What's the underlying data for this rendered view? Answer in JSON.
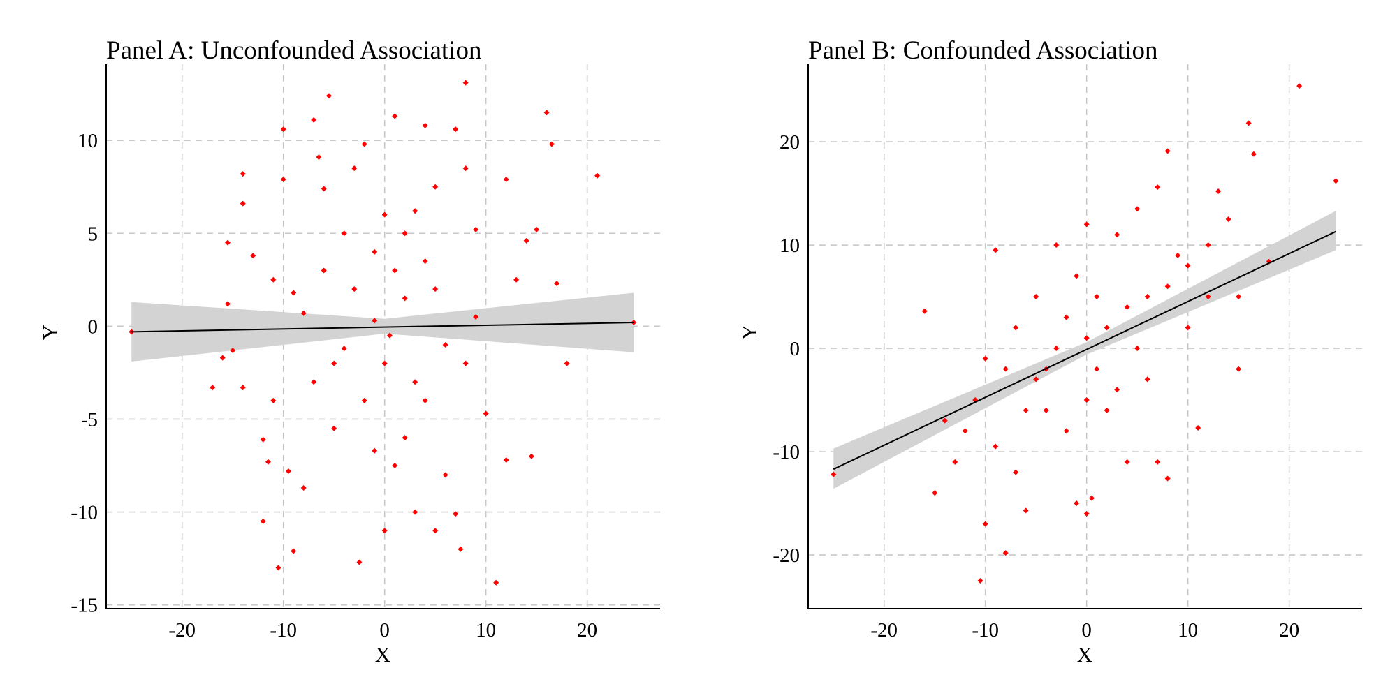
{
  "chart_data": [
    {
      "type": "scatter",
      "title": "Panel A: Unconfounded Association",
      "xlabel": "X",
      "ylabel": "Y",
      "xlim": [
        -27.5,
        27.2
      ],
      "ylim": [
        -15.2,
        14.1
      ],
      "xticks": [
        -20,
        -10,
        0,
        10,
        20
      ],
      "xtick_labels": [
        "-20",
        "-10",
        "0",
        "10",
        "20"
      ],
      "yticks": [
        -15,
        -10,
        -5,
        0,
        5,
        10
      ],
      "ytick_labels": [
        "-15",
        "-10",
        "-5",
        "0",
        "5",
        "10"
      ],
      "grid": true,
      "point_color": "#ff0000",
      "fit_line": {
        "x": [
          -25,
          24.6
        ],
        "y": [
          -0.3,
          0.2
        ],
        "color": "#000000"
      },
      "confidence_band": {
        "x": [
          -25,
          0,
          24.6
        ],
        "lower": [
          -1.9,
          -0.4,
          -1.4
        ],
        "upper": [
          1.3,
          0.4,
          1.8
        ],
        "color": "#d3d3d3"
      },
      "points": [
        [
          -25,
          -0.3
        ],
        [
          -17,
          -3.3
        ],
        [
          -16,
          -1.7
        ],
        [
          -15.5,
          1.2
        ],
        [
          -15.5,
          4.5
        ],
        [
          -15,
          -1.3
        ],
        [
          -14,
          8.2
        ],
        [
          -14,
          6.6
        ],
        [
          -14,
          -3.3
        ],
        [
          -13,
          3.8
        ],
        [
          -12,
          -6.1
        ],
        [
          -12,
          -10.5
        ],
        [
          -11.5,
          -7.3
        ],
        [
          -11,
          2.5
        ],
        [
          -11,
          -4
        ],
        [
          -10.5,
          -13
        ],
        [
          -10,
          7.9
        ],
        [
          -10,
          10.6
        ],
        [
          -9.5,
          -7.8
        ],
        [
          -9,
          -12.1
        ],
        [
          -8,
          0.7
        ],
        [
          -8,
          -8.7
        ],
        [
          -7,
          11.1
        ],
        [
          -6.5,
          9.1
        ],
        [
          -6,
          7.4
        ],
        [
          -5.5,
          12.4
        ],
        [
          -5,
          -5.5
        ],
        [
          -4,
          -1.2
        ],
        [
          -3,
          8.5
        ],
        [
          -2.5,
          -12.7
        ],
        [
          -2,
          9.8
        ],
        [
          -1,
          -6.7
        ],
        [
          0,
          -11
        ],
        [
          0,
          6
        ],
        [
          1,
          11.3
        ],
        [
          1,
          3
        ],
        [
          2,
          -6
        ],
        [
          2,
          5
        ],
        [
          3,
          -10
        ],
        [
          4,
          10.8
        ],
        [
          4,
          -4
        ],
        [
          5,
          -11
        ],
        [
          5,
          7.5
        ],
        [
          6,
          -8
        ],
        [
          7,
          10.6
        ],
        [
          7,
          -10.1
        ],
        [
          7.5,
          -12
        ],
        [
          8,
          13.1
        ],
        [
          8,
          8.5
        ],
        [
          9,
          5.2
        ],
        [
          10,
          -4.7
        ],
        [
          11,
          -13.8
        ],
        [
          12,
          7.9
        ],
        [
          12,
          -7.2
        ],
        [
          13,
          2.5
        ],
        [
          14,
          4.6
        ],
        [
          14.5,
          -7
        ],
        [
          15,
          5.2
        ],
        [
          16,
          11.5
        ],
        [
          16.5,
          9.8
        ],
        [
          17,
          2.3
        ],
        [
          18,
          -2
        ],
        [
          21,
          8.1
        ],
        [
          24.6,
          0.2
        ],
        [
          -3,
          2
        ],
        [
          0,
          -2
        ],
        [
          2,
          1.5
        ],
        [
          -1,
          4
        ],
        [
          3,
          -3
        ],
        [
          -5,
          -2
        ],
        [
          5,
          2
        ],
        [
          -7,
          -3
        ],
        [
          6,
          -1
        ],
        [
          -2,
          -4
        ],
        [
          1,
          -7.5
        ],
        [
          4,
          3.5
        ],
        [
          -4,
          5
        ],
        [
          8,
          -2
        ],
        [
          -9,
          1.8
        ],
        [
          9,
          0.5
        ],
        [
          -6,
          3
        ],
        [
          3,
          6.2
        ],
        [
          -1,
          0.3
        ],
        [
          0.5,
          -0.5
        ]
      ]
    },
    {
      "type": "scatter",
      "title": "Panel B: Confounded Association",
      "xlabel": "X",
      "ylabel": "Y",
      "xlim": [
        -27.5,
        27.2
      ],
      "ylim": [
        -25.2,
        27.5
      ],
      "xticks": [
        -20,
        -10,
        0,
        10,
        20
      ],
      "xtick_labels": [
        "-20",
        "-10",
        "0",
        "10",
        "20"
      ],
      "yticks": [
        -20,
        -10,
        0,
        10,
        20
      ],
      "ytick_labels": [
        "-20",
        "-10",
        "0",
        "10",
        "20"
      ],
      "grid": true,
      "point_color": "#ff0000",
      "fit_line": {
        "x": [
          -25,
          24.6
        ],
        "y": [
          -11.7,
          11.3
        ],
        "color": "#000000"
      },
      "confidence_band": {
        "x": [
          -25,
          0,
          24.6
        ],
        "lower": [
          -13.6,
          -0.6,
          9.5
        ],
        "upper": [
          -9.7,
          0.6,
          13.3
        ],
        "color": "#d3d3d3"
      },
      "points": [
        [
          -25,
          -12.2
        ],
        [
          -16,
          3.6
        ],
        [
          -15,
          -14
        ],
        [
          -14,
          -7
        ],
        [
          -13,
          -11
        ],
        [
          -12,
          -8
        ],
        [
          -11,
          -5
        ],
        [
          -10.5,
          -22.5
        ],
        [
          -10,
          -17
        ],
        [
          -9,
          -9.5
        ],
        [
          -9,
          9.5
        ],
        [
          -8,
          -19.8
        ],
        [
          -7,
          -12
        ],
        [
          -6,
          -15.7
        ],
        [
          -5,
          5
        ],
        [
          -4,
          -2
        ],
        [
          -3,
          10
        ],
        [
          -2,
          -8
        ],
        [
          -1,
          -15
        ],
        [
          0,
          12
        ],
        [
          0,
          -16
        ],
        [
          0.5,
          -14.5
        ],
        [
          1,
          5
        ],
        [
          2,
          -6
        ],
        [
          3,
          11
        ],
        [
          4,
          -11
        ],
        [
          5,
          13.5
        ],
        [
          6,
          -3
        ],
        [
          7,
          15.6
        ],
        [
          7,
          -11
        ],
        [
          8,
          19.1
        ],
        [
          8,
          -12.6
        ],
        [
          9,
          9
        ],
        [
          10,
          2
        ],
        [
          11,
          -7.7
        ],
        [
          12,
          10
        ],
        [
          13,
          15.2
        ],
        [
          14,
          12.5
        ],
        [
          15,
          -2
        ],
        [
          15,
          5
        ],
        [
          16,
          21.8
        ],
        [
          16.5,
          18.8
        ],
        [
          18,
          8.4
        ],
        [
          21,
          25.4
        ],
        [
          24.6,
          16.2
        ],
        [
          -5,
          -3
        ],
        [
          -3,
          0
        ],
        [
          0,
          1
        ],
        [
          2,
          2
        ],
        [
          4,
          4
        ],
        [
          -6,
          -6
        ],
        [
          6,
          5
        ],
        [
          -2,
          3
        ],
        [
          3,
          -4
        ],
        [
          -8,
          -2
        ],
        [
          8,
          6
        ],
        [
          1,
          -2
        ],
        [
          -4,
          -6
        ],
        [
          5,
          0
        ],
        [
          0,
          -5
        ],
        [
          -1,
          7
        ],
        [
          10,
          8
        ],
        [
          -10,
          -1
        ],
        [
          12,
          5
        ],
        [
          -7,
          2
        ]
      ]
    }
  ]
}
